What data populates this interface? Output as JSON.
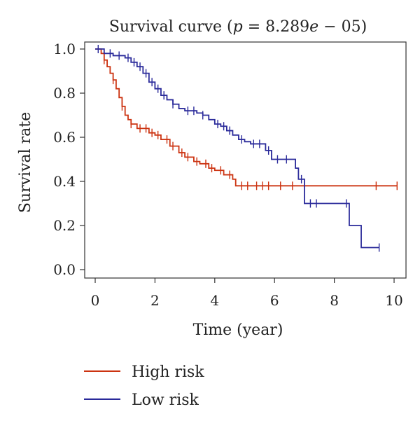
{
  "chart_data": {
    "type": "line",
    "subtype": "kaplan-meier-step",
    "title_prefix": "Survival curve (",
    "title_p": "p",
    "title_mid": " = 8.289",
    "title_e": "e",
    "title_suffix": " − 05)",
    "xlabel": "Time (year)",
    "ylabel": "Survival rate",
    "xlim": [
      0,
      10.2
    ],
    "ylim": [
      0,
      1.05
    ],
    "xticks": [
      0,
      2,
      4,
      6,
      8,
      10
    ],
    "xtick_labels": [
      "0",
      "2",
      "4",
      "6",
      "8",
      "10"
    ],
    "yticks": [
      0.0,
      0.2,
      0.4,
      0.6,
      0.8,
      1.0
    ],
    "ytick_labels": [
      "0.0",
      "0.2",
      "0.4",
      "0.6",
      "0.8",
      "1.0"
    ],
    "grid": false,
    "legend_position": "bottom-left",
    "series": [
      {
        "name": "High risk",
        "color": "#cc3311",
        "steps": [
          [
            0,
            1.0
          ],
          [
            0.2,
            0.98
          ],
          [
            0.3,
            0.95
          ],
          [
            0.4,
            0.92
          ],
          [
            0.5,
            0.89
          ],
          [
            0.6,
            0.86
          ],
          [
            0.7,
            0.82
          ],
          [
            0.8,
            0.78
          ],
          [
            0.9,
            0.74
          ],
          [
            1.0,
            0.7
          ],
          [
            1.1,
            0.68
          ],
          [
            1.2,
            0.66
          ],
          [
            1.4,
            0.64
          ],
          [
            1.8,
            0.62
          ],
          [
            2.0,
            0.61
          ],
          [
            2.2,
            0.59
          ],
          [
            2.5,
            0.56
          ],
          [
            2.8,
            0.53
          ],
          [
            3.0,
            0.51
          ],
          [
            3.3,
            0.49
          ],
          [
            3.5,
            0.48
          ],
          [
            3.8,
            0.46
          ],
          [
            4.0,
            0.45
          ],
          [
            4.3,
            0.43
          ],
          [
            4.6,
            0.41
          ],
          [
            4.7,
            0.38
          ],
          [
            10.1,
            0.38
          ]
        ],
        "censor_times": [
          0.3,
          0.6,
          0.9,
          1.2,
          1.5,
          1.7,
          1.9,
          2.1,
          2.4,
          2.6,
          2.9,
          3.1,
          3.4,
          3.7,
          3.9,
          4.2,
          4.5,
          4.9,
          5.1,
          5.4,
          5.6,
          5.8,
          6.2,
          6.6,
          9.4,
          10.1
        ]
      },
      {
        "name": "Low risk",
        "color": "#2a2a9a",
        "steps": [
          [
            0,
            1.0
          ],
          [
            0.3,
            0.98
          ],
          [
            0.6,
            0.97
          ],
          [
            1.0,
            0.96
          ],
          [
            1.2,
            0.94
          ],
          [
            1.4,
            0.92
          ],
          [
            1.6,
            0.89
          ],
          [
            1.8,
            0.85
          ],
          [
            2.0,
            0.82
          ],
          [
            2.2,
            0.79
          ],
          [
            2.4,
            0.77
          ],
          [
            2.6,
            0.75
          ],
          [
            2.8,
            0.73
          ],
          [
            3.0,
            0.72
          ],
          [
            3.4,
            0.71
          ],
          [
            3.6,
            0.7
          ],
          [
            3.8,
            0.68
          ],
          [
            4.0,
            0.66
          ],
          [
            4.2,
            0.65
          ],
          [
            4.4,
            0.63
          ],
          [
            4.6,
            0.61
          ],
          [
            4.8,
            0.59
          ],
          [
            5.0,
            0.58
          ],
          [
            5.2,
            0.57
          ],
          [
            5.7,
            0.54
          ],
          [
            5.9,
            0.5
          ],
          [
            6.7,
            0.46
          ],
          [
            6.8,
            0.41
          ],
          [
            7.0,
            0.3
          ],
          [
            8.5,
            0.2
          ],
          [
            8.9,
            0.1
          ],
          [
            9.5,
            0.1
          ]
        ],
        "censor_times": [
          0.1,
          0.5,
          0.8,
          1.1,
          1.3,
          1.5,
          1.7,
          1.9,
          2.1,
          2.3,
          2.6,
          3.1,
          3.3,
          3.6,
          4.1,
          4.3,
          4.5,
          4.9,
          5.3,
          5.5,
          5.8,
          6.1,
          6.4,
          6.9,
          7.2,
          7.4,
          8.4,
          9.5
        ]
      }
    ]
  }
}
